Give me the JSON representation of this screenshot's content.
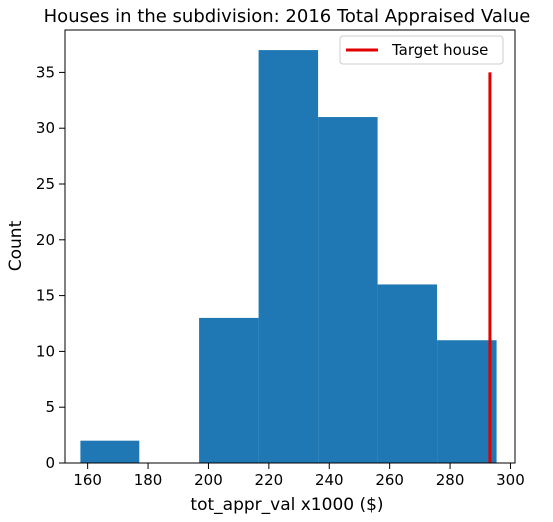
{
  "chart_data": {
    "type": "bar",
    "title": "Houses in the subdivision: 2016 Total Appraised Value",
    "xlabel": "tot_appr_val x1000 ($)",
    "ylabel": "Count",
    "xlim": [
      152.5,
      301.5
    ],
    "ylim": [
      0,
      38.8
    ],
    "xticks": [
      160,
      180,
      200,
      220,
      240,
      260,
      280,
      300
    ],
    "yticks": [
      0,
      5,
      10,
      15,
      20,
      25,
      30,
      35
    ],
    "grid": false,
    "legend_position": "top-right",
    "bins": [
      {
        "x0": 157.6,
        "x1": 177.1,
        "count": 2
      },
      {
        "x0": 177.1,
        "x1": 196.9,
        "count": 0
      },
      {
        "x0": 196.9,
        "x1": 216.6,
        "count": 13
      },
      {
        "x0": 216.6,
        "x1": 236.3,
        "count": 37
      },
      {
        "x0": 236.3,
        "x1": 256.0,
        "count": 31
      },
      {
        "x0": 256.0,
        "x1": 275.7,
        "count": 16
      },
      {
        "x0": 275.7,
        "x1": 295.4,
        "count": 11
      }
    ],
    "bar_color": "#1f77b4",
    "target": {
      "label": "Target house",
      "x": 293.2,
      "y_range": [
        0,
        35
      ],
      "color": "#e00000"
    }
  }
}
